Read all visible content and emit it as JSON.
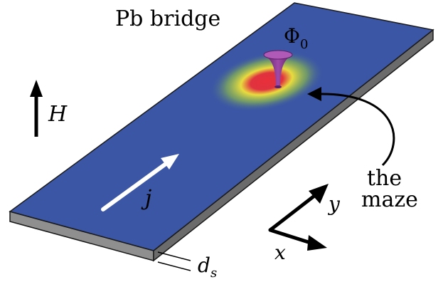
{
  "title": "Pb bridge",
  "flux_label": "Φ",
  "flux_subscript": "0",
  "field_label": "H",
  "current_label": "j",
  "thickness_label": "d",
  "thickness_subscript": "s",
  "axis_x_label": "x",
  "axis_y_label": "y",
  "maze_label_line1": "the",
  "maze_label_line2": "maze",
  "colors": {
    "plate_top": "#3b56a5",
    "plate_side": "#8f8f8f",
    "plate_front": "#6b6b6b",
    "outline": "#1a1a1a",
    "arrow_current": "#ffffff",
    "hotspot_outer": "#9ccf3a",
    "hotspot_mid": "#f2e23a",
    "hotspot_inner": "#e8303a",
    "vortex": "#7b2f86"
  }
}
